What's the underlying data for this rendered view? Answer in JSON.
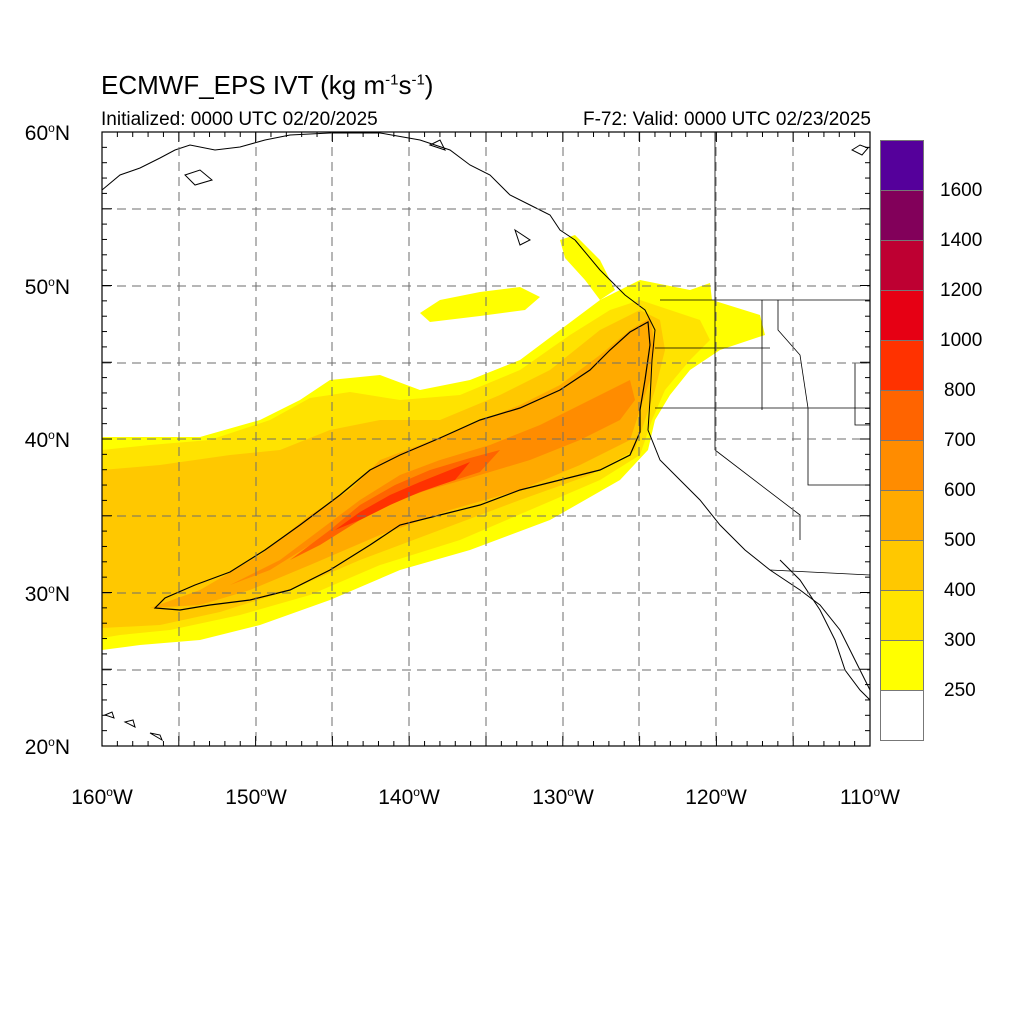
{
  "header": {
    "title_main": "ECMWF_EPS IVT (kg m",
    "title_exp1": "-1",
    "title_mid": "s",
    "title_exp2": "-1",
    "title_end": ")",
    "initialized": "Initialized: 0000 UTC 02/20/2025",
    "valid": "F-72: Valid: 0000 UTC 02/23/2025"
  },
  "axes": {
    "lat_labels": [
      {
        "value": "60",
        "unit": "N"
      },
      {
        "value": "50",
        "unit": "N"
      },
      {
        "value": "40",
        "unit": "N"
      },
      {
        "value": "30",
        "unit": "N"
      },
      {
        "value": "20",
        "unit": "N"
      }
    ],
    "lon_labels": [
      {
        "value": "160",
        "unit": "W"
      },
      {
        "value": "150",
        "unit": "W"
      },
      {
        "value": "140",
        "unit": "W"
      },
      {
        "value": "130",
        "unit": "W"
      },
      {
        "value": "120",
        "unit": "W"
      },
      {
        "value": "110",
        "unit": "W"
      }
    ],
    "lon_range": [
      -160,
      -110
    ],
    "lat_range": [
      20,
      60
    ],
    "grid": true,
    "grid_spacing_deg": 5
  },
  "colorbar": {
    "levels": [
      "250",
      "300",
      "400",
      "500",
      "600",
      "700",
      "800",
      "1000",
      "1200",
      "1400",
      "1600"
    ],
    "colors": [
      "#ffffff",
      "#ffff00",
      "#ffe300",
      "#ffc800",
      "#ffaa00",
      "#ff8c00",
      "#ff6400",
      "#ff3200",
      "#e60014",
      "#be0032",
      "#82005a",
      "#55009b"
    ]
  },
  "chart_data": {
    "type": "heatmap",
    "variable": "IVT",
    "ivt_plume_core": {
      "contour_kg_m_s": 500,
      "axis_lon": [
        -156,
        -150,
        -145,
        -140,
        -135,
        -130,
        -125,
        -123
      ],
      "axis_lat": [
        29.5,
        31.5,
        34,
        37,
        39,
        41,
        44,
        47
      ]
    },
    "axes": {
      "x_range": [
        -160,
        -110
      ],
      "y_range": [
        20,
        60
      ]
    }
  }
}
